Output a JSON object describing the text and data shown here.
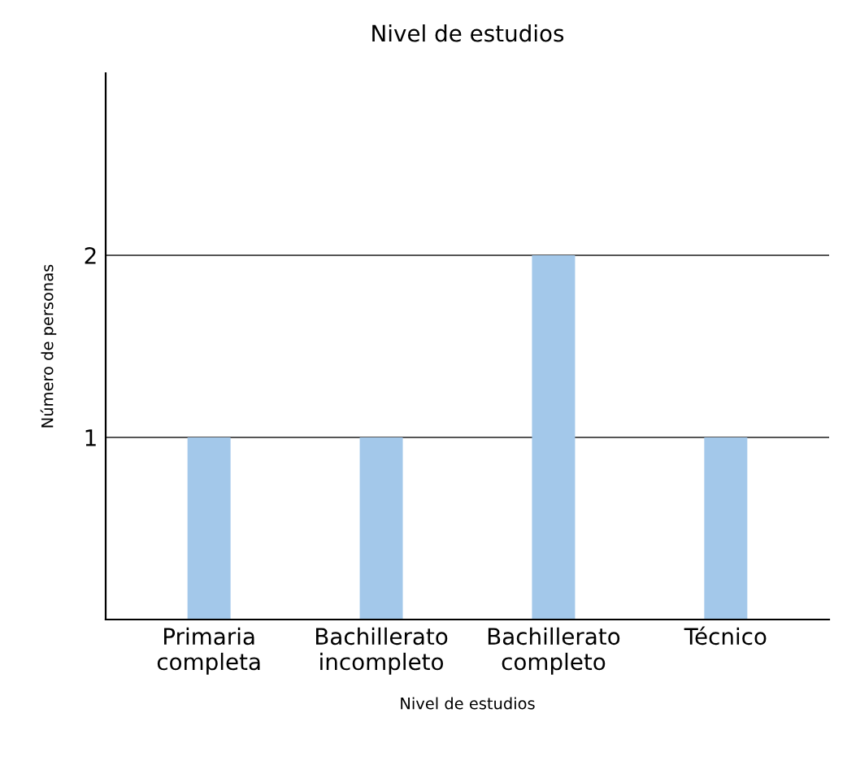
{
  "chart_data": {
    "type": "bar",
    "title": "Nivel de estudios",
    "xlabel": "Nivel de estudios",
    "ylabel": "Número de personas",
    "categories": [
      "Primaria\ncompleta",
      "Bachillerato\nincompleto",
      "Bachillerato\ncompleto",
      "Técnico"
    ],
    "values": [
      1,
      1,
      2,
      1
    ],
    "color": "#a3c8ea",
    "ylim": [
      0,
      3
    ],
    "yticks": [
      1,
      2
    ],
    "grid": "y"
  }
}
